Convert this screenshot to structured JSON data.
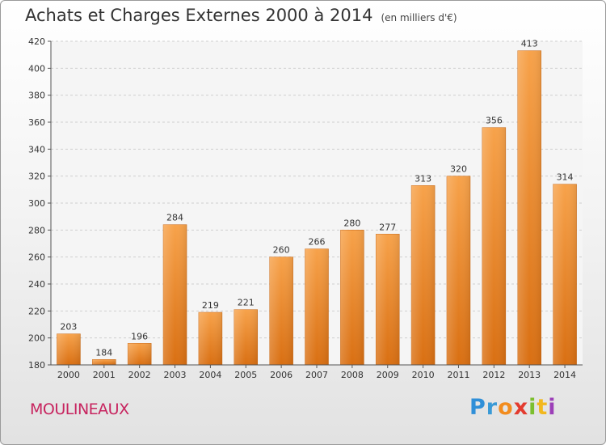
{
  "title": "Achats et Charges Externes 2000 à 2014",
  "subtitle": "(en milliers d'€)",
  "place": "MOULINEAUX",
  "logo": {
    "letters": [
      "P",
      "r",
      "o",
      "x",
      "i",
      "t",
      "i"
    ],
    "colors": [
      "#2f8fd8",
      "#3a9ad6",
      "#f28c1e",
      "#e33b2f",
      "#7cbf2e",
      "#f2b81e",
      "#9c3fb8"
    ]
  },
  "chart_data": {
    "type": "bar",
    "categories": [
      "2000",
      "2001",
      "2002",
      "2003",
      "2004",
      "2005",
      "2006",
      "2007",
      "2008",
      "2009",
      "2010",
      "2011",
      "2012",
      "2013",
      "2014"
    ],
    "values": [
      203,
      184,
      196,
      284,
      219,
      221,
      260,
      266,
      280,
      277,
      313,
      320,
      356,
      413,
      314
    ],
    "title": "Achats et Charges Externes 2000 à 2014",
    "subtitle": "(en milliers d'€)",
    "ylim": [
      180,
      420
    ],
    "yticks": [
      180,
      200,
      220,
      240,
      260,
      280,
      300,
      320,
      340,
      360,
      380,
      400,
      420
    ],
    "grid": true,
    "bar_color": "#f08a24"
  }
}
